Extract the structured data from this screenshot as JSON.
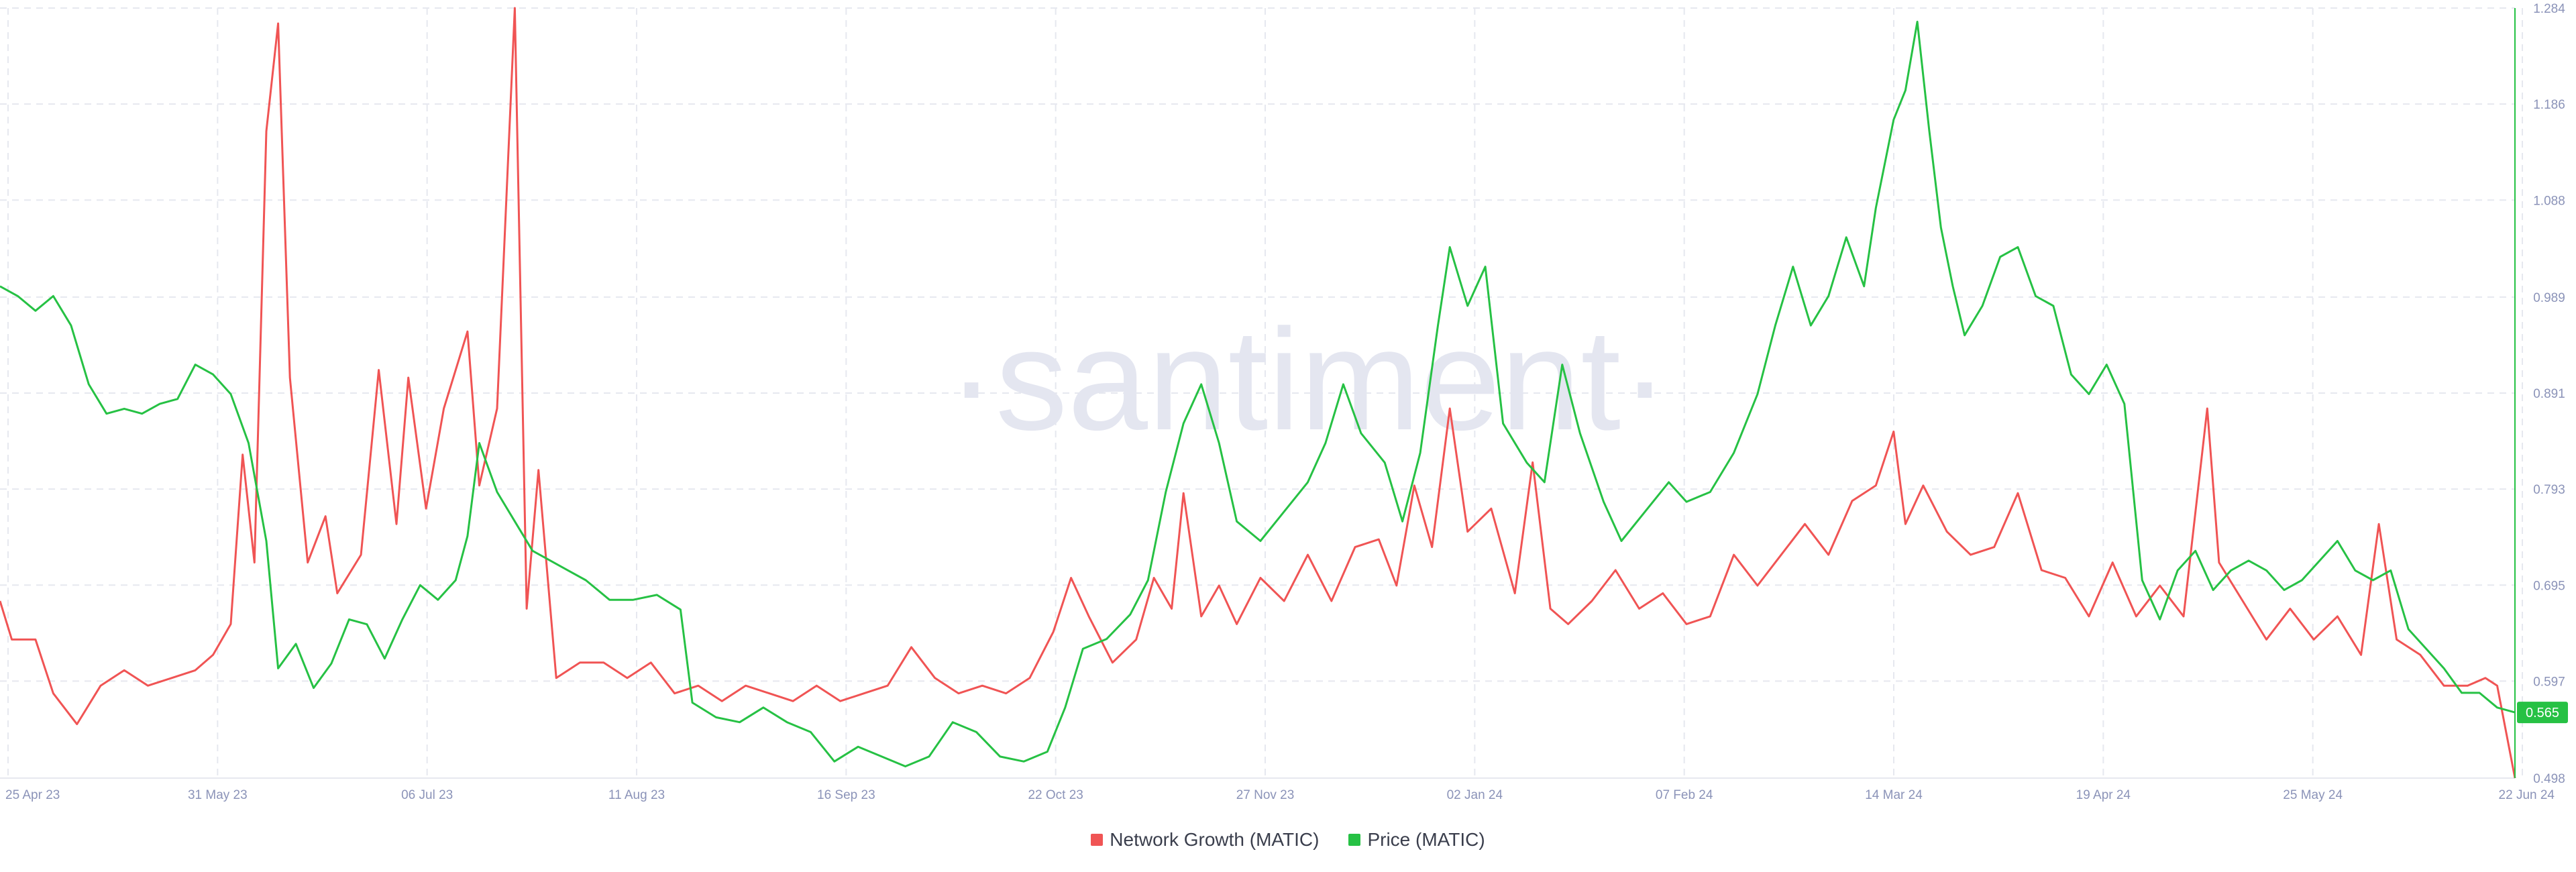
{
  "colors": {
    "network_growth": "#f05454",
    "price": "#26c144",
    "grid": "#e6e8ef",
    "tick_text": "#8b93b8",
    "watermark": "#e4e6f0"
  },
  "watermark": "·santiment·",
  "price_badge": "0.565",
  "legend": [
    {
      "label": "Network Growth (MATIC)",
      "color": "#f05454"
    },
    {
      "label": "Price (MATIC)",
      "color": "#26c144"
    }
  ],
  "chart_data": {
    "type": "line",
    "x_ticks": [
      "25 Apr 23",
      "31 May 23",
      "06 Jul 23",
      "11 Aug 23",
      "16 Sep 23",
      "22 Oct 23",
      "27 Nov 23",
      "02 Jan 24",
      "07 Feb 24",
      "14 Mar 24",
      "19 Apr 24",
      "25 May 24",
      "22 Jun 24"
    ],
    "x_range": [
      "2023-04-24",
      "2024-06-22"
    ],
    "y_right": {
      "ticks": [
        0.498,
        0.597,
        0.695,
        0.793,
        0.891,
        0.989,
        1.088,
        1.186,
        1.284
      ],
      "ylim": [
        0.498,
        1.284
      ]
    },
    "grid": true,
    "legend_position": "bottom-center",
    "series": [
      {
        "name": "Network Growth (MATIC)",
        "axis": "left-hidden",
        "ylim": [
          0,
          100
        ],
        "points": [
          [
            "2023-04-24",
            23
          ],
          [
            "2023-04-26",
            18
          ],
          [
            "2023-04-30",
            18
          ],
          [
            "2023-05-03",
            11
          ],
          [
            "2023-05-07",
            7
          ],
          [
            "2023-05-11",
            12
          ],
          [
            "2023-05-15",
            14
          ],
          [
            "2023-05-19",
            12
          ],
          [
            "2023-05-23",
            13
          ],
          [
            "2023-05-27",
            14
          ],
          [
            "2023-05-30",
            16
          ],
          [
            "2023-06-02",
            20
          ],
          [
            "2023-06-04",
            42
          ],
          [
            "2023-06-06",
            28
          ],
          [
            "2023-06-08",
            84
          ],
          [
            "2023-06-10",
            98
          ],
          [
            "2023-06-12",
            52
          ],
          [
            "2023-06-15",
            28
          ],
          [
            "2023-06-18",
            34
          ],
          [
            "2023-06-20",
            24
          ],
          [
            "2023-06-24",
            29
          ],
          [
            "2023-06-27",
            53
          ],
          [
            "2023-06-30",
            33
          ],
          [
            "2023-07-02",
            52
          ],
          [
            "2023-07-05",
            35
          ],
          [
            "2023-07-08",
            48
          ],
          [
            "2023-07-12",
            58
          ],
          [
            "2023-07-14",
            38
          ],
          [
            "2023-07-17",
            48
          ],
          [
            "2023-07-20",
            100
          ],
          [
            "2023-07-22",
            22
          ],
          [
            "2023-07-24",
            40
          ],
          [
            "2023-07-27",
            13
          ],
          [
            "2023-07-31",
            15
          ],
          [
            "2023-08-04",
            15
          ],
          [
            "2023-08-08",
            13
          ],
          [
            "2023-08-12",
            15
          ],
          [
            "2023-08-16",
            11
          ],
          [
            "2023-08-20",
            12
          ],
          [
            "2023-08-24",
            10
          ],
          [
            "2023-08-28",
            12
          ],
          [
            "2023-09-01",
            11
          ],
          [
            "2023-09-05",
            10
          ],
          [
            "2023-09-09",
            12
          ],
          [
            "2023-09-13",
            10
          ],
          [
            "2023-09-17",
            11
          ],
          [
            "2023-09-21",
            12
          ],
          [
            "2023-09-25",
            17
          ],
          [
            "2023-09-29",
            13
          ],
          [
            "2023-10-03",
            11
          ],
          [
            "2023-10-07",
            12
          ],
          [
            "2023-10-11",
            11
          ],
          [
            "2023-10-15",
            13
          ],
          [
            "2023-10-19",
            19
          ],
          [
            "2023-10-22",
            26
          ],
          [
            "2023-10-25",
            21
          ],
          [
            "2023-10-29",
            15
          ],
          [
            "2023-11-02",
            18
          ],
          [
            "2023-11-05",
            26
          ],
          [
            "2023-11-08",
            22
          ],
          [
            "2023-11-10",
            37
          ],
          [
            "2023-11-13",
            21
          ],
          [
            "2023-11-16",
            25
          ],
          [
            "2023-11-19",
            20
          ],
          [
            "2023-11-23",
            26
          ],
          [
            "2023-11-27",
            23
          ],
          [
            "2023-12-01",
            29
          ],
          [
            "2023-12-05",
            23
          ],
          [
            "2023-12-09",
            30
          ],
          [
            "2023-12-13",
            31
          ],
          [
            "2023-12-16",
            25
          ],
          [
            "2023-12-19",
            38
          ],
          [
            "2023-12-22",
            30
          ],
          [
            "2023-12-25",
            48
          ],
          [
            "2023-12-28",
            32
          ],
          [
            "2024-01-01",
            35
          ],
          [
            "2024-01-05",
            24
          ],
          [
            "2024-01-08",
            41
          ],
          [
            "2024-01-11",
            22
          ],
          [
            "2024-01-14",
            20
          ],
          [
            "2024-01-18",
            23
          ],
          [
            "2024-01-22",
            27
          ],
          [
            "2024-01-26",
            22
          ],
          [
            "2024-01-30",
            24
          ],
          [
            "2024-02-03",
            20
          ],
          [
            "2024-02-07",
            21
          ],
          [
            "2024-02-11",
            29
          ],
          [
            "2024-02-15",
            25
          ],
          [
            "2024-02-19",
            29
          ],
          [
            "2024-02-23",
            33
          ],
          [
            "2024-02-27",
            29
          ],
          [
            "2024-03-02",
            36
          ],
          [
            "2024-03-06",
            38
          ],
          [
            "2024-03-09",
            45
          ],
          [
            "2024-03-11",
            33
          ],
          [
            "2024-03-14",
            38
          ],
          [
            "2024-03-18",
            32
          ],
          [
            "2024-03-22",
            29
          ],
          [
            "2024-03-26",
            30
          ],
          [
            "2024-03-30",
            37
          ],
          [
            "2024-04-03",
            27
          ],
          [
            "2024-04-07",
            26
          ],
          [
            "2024-04-11",
            21
          ],
          [
            "2024-04-15",
            28
          ],
          [
            "2024-04-19",
            21
          ],
          [
            "2024-04-23",
            25
          ],
          [
            "2024-04-27",
            21
          ],
          [
            "2024-05-01",
            48
          ],
          [
            "2024-05-03",
            28
          ],
          [
            "2024-05-07",
            23
          ],
          [
            "2024-05-11",
            18
          ],
          [
            "2024-05-15",
            22
          ],
          [
            "2024-05-19",
            18
          ],
          [
            "2024-05-23",
            21
          ],
          [
            "2024-05-27",
            16
          ],
          [
            "2024-05-30",
            33
          ],
          [
            "2024-06-02",
            18
          ],
          [
            "2024-06-06",
            16
          ],
          [
            "2024-06-10",
            12
          ],
          [
            "2024-06-14",
            12
          ],
          [
            "2024-06-17",
            13
          ],
          [
            "2024-06-19",
            12
          ],
          [
            "2024-06-22",
            0
          ]
        ]
      },
      {
        "name": "Price (MATIC)",
        "axis": "right",
        "points": [
          [
            "2023-04-24",
            1.0
          ],
          [
            "2023-04-27",
            0.99
          ],
          [
            "2023-04-30",
            0.975
          ],
          [
            "2023-05-03",
            0.99
          ],
          [
            "2023-05-06",
            0.96
          ],
          [
            "2023-05-09",
            0.9
          ],
          [
            "2023-05-12",
            0.87
          ],
          [
            "2023-05-15",
            0.875
          ],
          [
            "2023-05-18",
            0.87
          ],
          [
            "2023-05-21",
            0.88
          ],
          [
            "2023-05-24",
            0.885
          ],
          [
            "2023-05-27",
            0.92
          ],
          [
            "2023-05-30",
            0.91
          ],
          [
            "2023-06-02",
            0.89
          ],
          [
            "2023-06-05",
            0.84
          ],
          [
            "2023-06-08",
            0.74
          ],
          [
            "2023-06-10",
            0.61
          ],
          [
            "2023-06-13",
            0.635
          ],
          [
            "2023-06-16",
            0.59
          ],
          [
            "2023-06-19",
            0.615
          ],
          [
            "2023-06-22",
            0.66
          ],
          [
            "2023-06-25",
            0.655
          ],
          [
            "2023-06-28",
            0.62
          ],
          [
            "2023-07-01",
            0.66
          ],
          [
            "2023-07-04",
            0.695
          ],
          [
            "2023-07-07",
            0.68
          ],
          [
            "2023-07-10",
            0.7
          ],
          [
            "2023-07-12",
            0.745
          ],
          [
            "2023-07-14",
            0.84
          ],
          [
            "2023-07-17",
            0.79
          ],
          [
            "2023-07-20",
            0.76
          ],
          [
            "2023-07-23",
            0.73
          ],
          [
            "2023-07-26",
            0.72
          ],
          [
            "2023-07-29",
            0.71
          ],
          [
            "2023-08-01",
            0.7
          ],
          [
            "2023-08-05",
            0.68
          ],
          [
            "2023-08-09",
            0.68
          ],
          [
            "2023-08-13",
            0.685
          ],
          [
            "2023-08-17",
            0.67
          ],
          [
            "2023-08-19",
            0.575
          ],
          [
            "2023-08-23",
            0.56
          ],
          [
            "2023-08-27",
            0.555
          ],
          [
            "2023-08-31",
            0.57
          ],
          [
            "2023-09-04",
            0.555
          ],
          [
            "2023-09-08",
            0.545
          ],
          [
            "2023-09-12",
            0.515
          ],
          [
            "2023-09-16",
            0.53
          ],
          [
            "2023-09-20",
            0.52
          ],
          [
            "2023-09-24",
            0.51
          ],
          [
            "2023-09-28",
            0.52
          ],
          [
            "2023-10-02",
            0.555
          ],
          [
            "2023-10-06",
            0.545
          ],
          [
            "2023-10-10",
            0.52
          ],
          [
            "2023-10-14",
            0.515
          ],
          [
            "2023-10-18",
            0.525
          ],
          [
            "2023-10-21",
            0.57
          ],
          [
            "2023-10-24",
            0.63
          ],
          [
            "2023-10-28",
            0.64
          ],
          [
            "2023-11-01",
            0.665
          ],
          [
            "2023-11-04",
            0.7
          ],
          [
            "2023-11-07",
            0.79
          ],
          [
            "2023-11-10",
            0.86
          ],
          [
            "2023-11-13",
            0.9
          ],
          [
            "2023-11-16",
            0.84
          ],
          [
            "2023-11-19",
            0.76
          ],
          [
            "2023-11-23",
            0.74
          ],
          [
            "2023-11-27",
            0.77
          ],
          [
            "2023-12-01",
            0.8
          ],
          [
            "2023-12-04",
            0.84
          ],
          [
            "2023-12-07",
            0.9
          ],
          [
            "2023-12-10",
            0.85
          ],
          [
            "2023-12-14",
            0.82
          ],
          [
            "2023-12-17",
            0.76
          ],
          [
            "2023-12-20",
            0.83
          ],
          [
            "2023-12-23",
            0.96
          ],
          [
            "2023-12-25",
            1.04
          ],
          [
            "2023-12-28",
            0.98
          ],
          [
            "2023-12-31",
            1.02
          ],
          [
            "2024-01-03",
            0.86
          ],
          [
            "2024-01-07",
            0.82
          ],
          [
            "2024-01-10",
            0.8
          ],
          [
            "2024-01-13",
            0.92
          ],
          [
            "2024-01-16",
            0.85
          ],
          [
            "2024-01-20",
            0.78
          ],
          [
            "2024-01-23",
            0.74
          ],
          [
            "2024-01-27",
            0.77
          ],
          [
            "2024-01-31",
            0.8
          ],
          [
            "2024-02-03",
            0.78
          ],
          [
            "2024-02-07",
            0.79
          ],
          [
            "2024-02-11",
            0.83
          ],
          [
            "2024-02-15",
            0.89
          ],
          [
            "2024-02-18",
            0.96
          ],
          [
            "2024-02-21",
            1.02
          ],
          [
            "2024-02-24",
            0.96
          ],
          [
            "2024-02-27",
            0.99
          ],
          [
            "2024-03-01",
            1.05
          ],
          [
            "2024-03-04",
            1.0
          ],
          [
            "2024-03-06",
            1.08
          ],
          [
            "2024-03-09",
            1.17
          ],
          [
            "2024-03-11",
            1.2
          ],
          [
            "2024-03-13",
            1.27
          ],
          [
            "2024-03-15",
            1.16
          ],
          [
            "2024-03-17",
            1.06
          ],
          [
            "2024-03-19",
            1.0
          ],
          [
            "2024-03-21",
            0.95
          ],
          [
            "2024-03-24",
            0.98
          ],
          [
            "2024-03-27",
            1.03
          ],
          [
            "2024-03-30",
            1.04
          ],
          [
            "2024-04-02",
            0.99
          ],
          [
            "2024-04-05",
            0.98
          ],
          [
            "2024-04-08",
            0.91
          ],
          [
            "2024-04-11",
            0.89
          ],
          [
            "2024-04-14",
            0.92
          ],
          [
            "2024-04-17",
            0.88
          ],
          [
            "2024-04-20",
            0.7
          ],
          [
            "2024-04-23",
            0.66
          ],
          [
            "2024-04-26",
            0.71
          ],
          [
            "2024-04-29",
            0.73
          ],
          [
            "2024-05-02",
            0.69
          ],
          [
            "2024-05-05",
            0.71
          ],
          [
            "2024-05-08",
            0.72
          ],
          [
            "2024-05-11",
            0.71
          ],
          [
            "2024-05-14",
            0.69
          ],
          [
            "2024-05-17",
            0.7
          ],
          [
            "2024-05-20",
            0.72
          ],
          [
            "2024-05-23",
            0.74
          ],
          [
            "2024-05-26",
            0.71
          ],
          [
            "2024-05-29",
            0.7
          ],
          [
            "2024-06-01",
            0.71
          ],
          [
            "2024-06-04",
            0.65
          ],
          [
            "2024-06-07",
            0.63
          ],
          [
            "2024-06-10",
            0.61
          ],
          [
            "2024-06-13",
            0.585
          ],
          [
            "2024-06-16",
            0.585
          ],
          [
            "2024-06-19",
            0.57
          ],
          [
            "2024-06-22",
            0.565
          ]
        ]
      }
    ]
  }
}
